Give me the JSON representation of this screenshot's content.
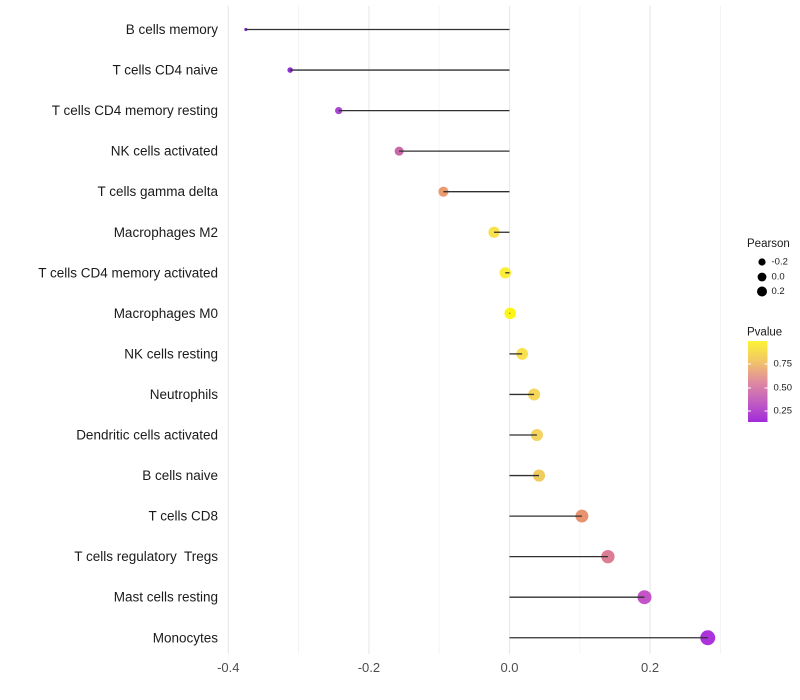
{
  "chart_data": {
    "type": "lollipop",
    "title": "",
    "xlabel": "",
    "ylabel": "",
    "xlim": [
      -0.45,
      0.34
    ],
    "grid": true,
    "legend_position": "right",
    "x_ticks": [
      {
        "value": -0.4,
        "label": "-0.4"
      },
      {
        "value": -0.2,
        "label": "-0.2"
      },
      {
        "value": 0.0,
        "label": "0.0"
      },
      {
        "value": 0.2,
        "label": "0.2"
      }
    ],
    "minor_gridlines": [
      -0.3,
      -0.1,
      0.1,
      0.3
    ],
    "categories": [
      "B cells memory",
      "T cells CD4 naive",
      "T cells CD4 memory resting",
      "NK cells activated",
      "T cells gamma delta",
      "Macrophages M2",
      "T cells CD4 memory activated",
      "Macrophages M0",
      "NK cells resting",
      "Neutrophils",
      "Dendritic cells activated",
      "B cells naive",
      "T cells CD8",
      "T cells regulatory  Tregs",
      "Mast cells resting",
      "Monocytes"
    ],
    "points": [
      {
        "label": "B cells memory",
        "pearson": -0.375,
        "color": "#8128D0"
      },
      {
        "label": "T cells CD4 naive",
        "pearson": -0.312,
        "color": "#8E2FD8"
      },
      {
        "label": "T cells CD4 memory resting",
        "pearson": -0.243,
        "color": "#A846D2"
      },
      {
        "label": "NK cells activated",
        "pearson": -0.157,
        "color": "#C967A8"
      },
      {
        "label": "T cells gamma delta",
        "pearson": -0.094,
        "color": "#EA9B70"
      },
      {
        "label": "Macrophages M2",
        "pearson": -0.022,
        "color": "#F7E24D"
      },
      {
        "label": "T cells CD4 memory activated",
        "pearson": -0.006,
        "color": "#FAEE3B"
      },
      {
        "label": "Macrophages M0",
        "pearson": 0.001,
        "color": "#FDF515"
      },
      {
        "label": "NK cells resting",
        "pearson": 0.018,
        "color": "#F8E14D"
      },
      {
        "label": "Neutrophils",
        "pearson": 0.035,
        "color": "#F5D75C"
      },
      {
        "label": "Dendritic cells activated",
        "pearson": 0.039,
        "color": "#F4D45F"
      },
      {
        "label": "B cells naive",
        "pearson": 0.042,
        "color": "#F0CC5E"
      },
      {
        "label": "T cells CD8",
        "pearson": 0.103,
        "color": "#E89370"
      },
      {
        "label": "T cells regulatory  Tregs",
        "pearson": 0.14,
        "color": "#DC7E93"
      },
      {
        "label": "Mast cells resting",
        "pearson": 0.192,
        "color": "#C553C8"
      },
      {
        "label": "Monocytes",
        "pearson": 0.282,
        "color": "#AC33DC"
      }
    ],
    "legend": {
      "size": {
        "title": "Pearson",
        "entries": [
          "-0.2",
          "0.0",
          "0.2"
        ]
      },
      "color": {
        "title": "Pvalue",
        "tick_labels": [
          "0.75",
          "0.50",
          "0.25"
        ],
        "gradient_top_to_bottom": [
          "#FCF435",
          "#F2C567",
          "#E08C9E",
          "#C35FC1",
          "#A12BDA"
        ]
      }
    },
    "colors": {
      "background": "#FFFFFF",
      "stem": "#303030",
      "grid_major": "#E8E8E8",
      "grid_minor": "#F3F3F3",
      "axis_text": "#4D4D4D",
      "label_text": "#1A1A1A",
      "legend_dot": "#000000"
    }
  }
}
